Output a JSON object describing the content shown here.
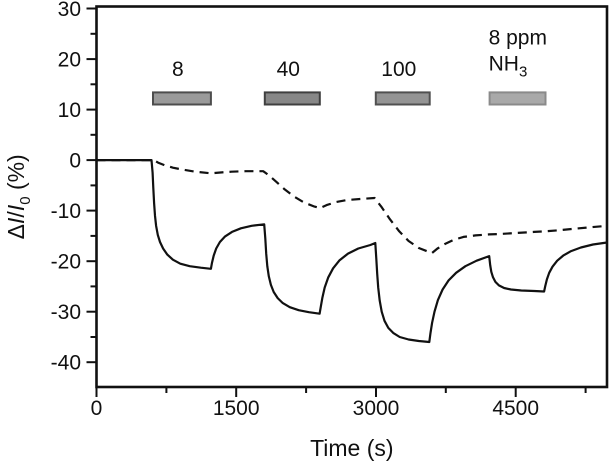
{
  "figure": {
    "background": "#ffffff",
    "description_label": "Sensor response curves during NH3 gas pulses"
  },
  "chart_data": {
    "type": "line",
    "title": "",
    "xlabel": "Time (s)",
    "ylabel": "ΔI/I₀ (%)",
    "ylabel_parts": [
      {
        "text": "Δ",
        "style": "normal"
      },
      {
        "text": "I",
        "style": "italic"
      },
      {
        "text": "/",
        "style": "normal"
      },
      {
        "text": "I",
        "style": "italic"
      },
      {
        "text": "0",
        "style": "sub"
      },
      {
        "text": " (%)",
        "style": "normal"
      }
    ],
    "xlim": [
      0,
      5480
    ],
    "ylim": [
      -44.9,
      30.4
    ],
    "x_major_ticks": [
      0,
      1500,
      3000,
      4500
    ],
    "x_minor_ticks": [
      750,
      2250,
      3750,
      5250
    ],
    "y_major_ticks": [
      30,
      20,
      10,
      0,
      -10,
      -20,
      -30,
      -40
    ],
    "y_minor_ticks": [
      25,
      15,
      5,
      -5,
      -15,
      -25,
      -35,
      -45
    ],
    "grid": false,
    "legend_position": "none",
    "axis_color": "#111111",
    "line_color": "#111111",
    "bar_band": {
      "v_top": 13.4,
      "v_bottom": 11.0
    },
    "exposure_bars": [
      {
        "label_lines": [
          {
            "text": "8"
          }
        ],
        "t_start": 606,
        "t_end": 1228,
        "fill": "#9a9a9a",
        "stroke": "#4d4d4d",
        "label_align": "center"
      },
      {
        "label_lines": [
          {
            "text": "40"
          }
        ],
        "t_start": 1807,
        "t_end": 2397,
        "fill": "#878787",
        "stroke": "#3f3f3f",
        "label_align": "center"
      },
      {
        "label_lines": [
          {
            "text": "100"
          }
        ],
        "t_start": 2998,
        "t_end": 3577,
        "fill": "#949494",
        "stroke": "#505050",
        "label_align": "center"
      },
      {
        "label_lines": [
          {
            "text": "8 ppm"
          },
          {
            "text": "NH",
            "sub": "3"
          }
        ],
        "t_start": 4220,
        "t_end": 4820,
        "fill": "#a9a9a9",
        "stroke": "#8a8a8a",
        "label_align": "left"
      }
    ],
    "series": [
      {
        "name": "solid-response",
        "style": "solid",
        "points": [
          [
            0,
            0
          ],
          [
            590,
            0
          ],
          [
            602,
            -2.5
          ],
          [
            610,
            -5.5
          ],
          [
            618,
            -8.5
          ],
          [
            628,
            -11
          ],
          [
            640,
            -13
          ],
          [
            658,
            -14.8
          ],
          [
            682,
            -16.2
          ],
          [
            715,
            -17.5
          ],
          [
            760,
            -18.7
          ],
          [
            820,
            -19.7
          ],
          [
            900,
            -20.5
          ],
          [
            1000,
            -21
          ],
          [
            1120,
            -21.3
          ],
          [
            1228,
            -21.5
          ],
          [
            1240,
            -20.3
          ],
          [
            1258,
            -18.9
          ],
          [
            1285,
            -17.5
          ],
          [
            1325,
            -16.2
          ],
          [
            1380,
            -15.1
          ],
          [
            1455,
            -14.2
          ],
          [
            1550,
            -13.5
          ],
          [
            1665,
            -13
          ],
          [
            1800,
            -12.7
          ],
          [
            1812,
            -15.5
          ],
          [
            1822,
            -18.5
          ],
          [
            1834,
            -21
          ],
          [
            1850,
            -23
          ],
          [
            1872,
            -24.7
          ],
          [
            1902,
            -26.1
          ],
          [
            1945,
            -27.3
          ],
          [
            2000,
            -28.3
          ],
          [
            2075,
            -29.1
          ],
          [
            2170,
            -29.7
          ],
          [
            2280,
            -30.1
          ],
          [
            2395,
            -30.4
          ],
          [
            2408,
            -29
          ],
          [
            2425,
            -27.2
          ],
          [
            2450,
            -25.2
          ],
          [
            2488,
            -23.2
          ],
          [
            2540,
            -21.4
          ],
          [
            2610,
            -19.8
          ],
          [
            2700,
            -18.5
          ],
          [
            2810,
            -17.5
          ],
          [
            2940,
            -16.8
          ],
          [
            2993,
            -16.4
          ],
          [
            3004,
            -19.5
          ],
          [
            3013,
            -22.5
          ],
          [
            3024,
            -25.2
          ],
          [
            3040,
            -27.8
          ],
          [
            3062,
            -30
          ],
          [
            3092,
            -31.8
          ],
          [
            3132,
            -33.2
          ],
          [
            3185,
            -34.2
          ],
          [
            3255,
            -35
          ],
          [
            3350,
            -35.5
          ],
          [
            3460,
            -35.8
          ],
          [
            3572,
            -36
          ],
          [
            3585,
            -34.2
          ],
          [
            3602,
            -32.2
          ],
          [
            3628,
            -30
          ],
          [
            3665,
            -27.7
          ],
          [
            3715,
            -25.6
          ],
          [
            3780,
            -23.8
          ],
          [
            3860,
            -22.3
          ],
          [
            3960,
            -21
          ],
          [
            4080,
            -19.9
          ],
          [
            4215,
            -19
          ],
          [
            4226,
            -20.8
          ],
          [
            4238,
            -22.1
          ],
          [
            4256,
            -23.2
          ],
          [
            4282,
            -24.1
          ],
          [
            4320,
            -24.8
          ],
          [
            4375,
            -25.3
          ],
          [
            4450,
            -25.6
          ],
          [
            4560,
            -25.8
          ],
          [
            4700,
            -25.9
          ],
          [
            4805,
            -26
          ],
          [
            4818,
            -24.9
          ],
          [
            4835,
            -23.6
          ],
          [
            4860,
            -22.3
          ],
          [
            4895,
            -21.1
          ],
          [
            4945,
            -19.9
          ],
          [
            5010,
            -18.9
          ],
          [
            5095,
            -18
          ],
          [
            5200,
            -17.3
          ],
          [
            5330,
            -16.7
          ],
          [
            5480,
            -16.3
          ]
        ]
      },
      {
        "name": "dashed-response",
        "style": "dashed",
        "points": [
          [
            0,
            0
          ],
          [
            615,
            0
          ],
          [
            660,
            -0.5
          ],
          [
            730,
            -1
          ],
          [
            820,
            -1.5
          ],
          [
            930,
            -1.9
          ],
          [
            1060,
            -2.3
          ],
          [
            1230,
            -2.6
          ],
          [
            1330,
            -2.45
          ],
          [
            1450,
            -2.3
          ],
          [
            1600,
            -2.2
          ],
          [
            1790,
            -2.2
          ],
          [
            1850,
            -3
          ],
          [
            1930,
            -4.3
          ],
          [
            2020,
            -5.8
          ],
          [
            2120,
            -7.2
          ],
          [
            2230,
            -8.4
          ],
          [
            2340,
            -9.2
          ],
          [
            2398,
            -9.5
          ],
          [
            2470,
            -8.9
          ],
          [
            2570,
            -8.3
          ],
          [
            2690,
            -7.9
          ],
          [
            2830,
            -7.7
          ],
          [
            2985,
            -7.5
          ],
          [
            3060,
            -9.3
          ],
          [
            3150,
            -11.7
          ],
          [
            3250,
            -14.1
          ],
          [
            3350,
            -16
          ],
          [
            3460,
            -17.4
          ],
          [
            3600,
            -18.4
          ],
          [
            3660,
            -17.5
          ],
          [
            3740,
            -16.6
          ],
          [
            3830,
            -15.8
          ],
          [
            3940,
            -15.2
          ],
          [
            4070,
            -14.9
          ],
          [
            4215,
            -14.7
          ],
          [
            4350,
            -14.6
          ],
          [
            4520,
            -14.4
          ],
          [
            4700,
            -14.2
          ],
          [
            4805,
            -14.1
          ],
          [
            4950,
            -13.9
          ],
          [
            5120,
            -13.6
          ],
          [
            5300,
            -13.3
          ],
          [
            5480,
            -13
          ]
        ]
      }
    ]
  }
}
